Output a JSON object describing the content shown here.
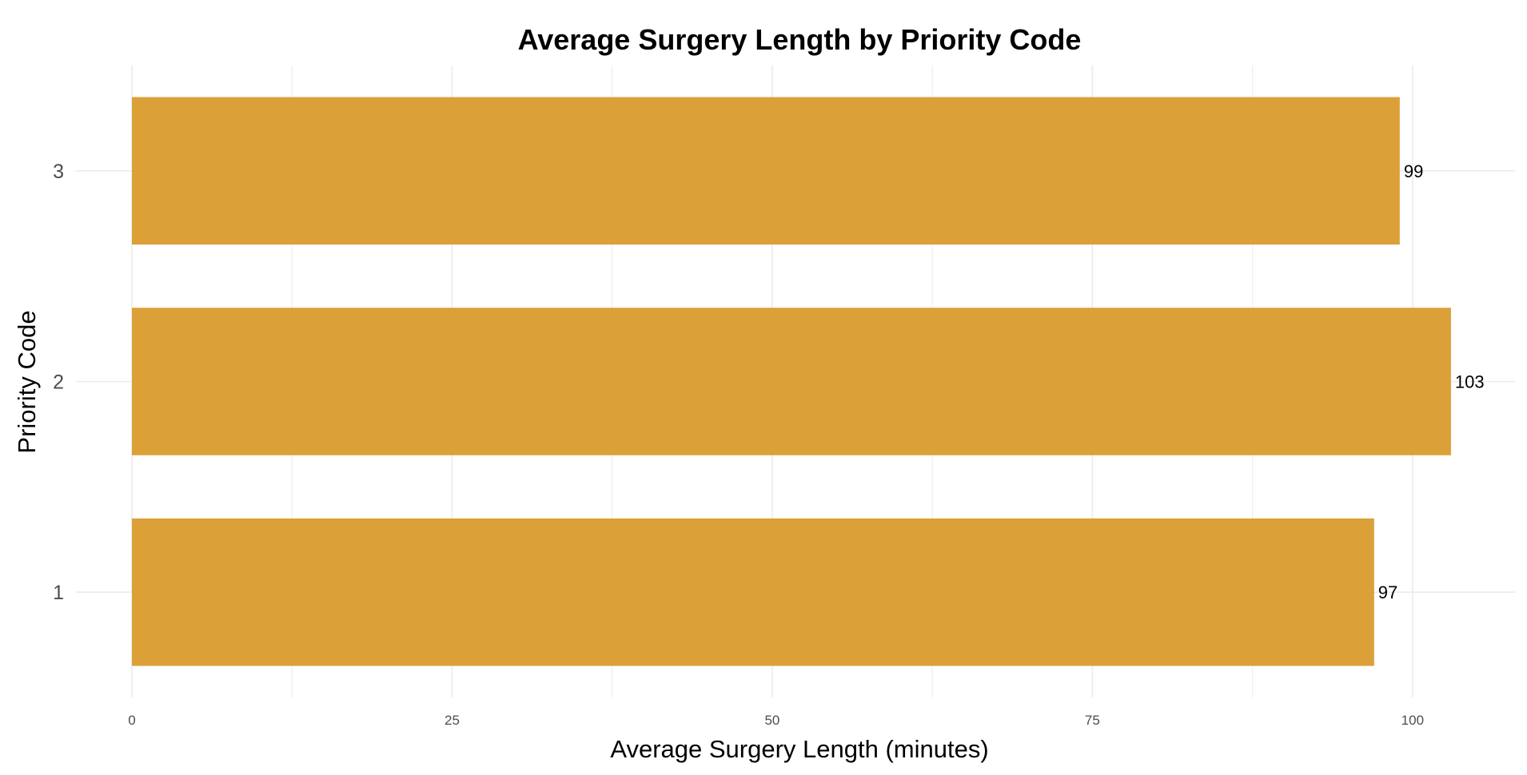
{
  "chart_data": {
    "type": "bar",
    "orientation": "horizontal",
    "title": "Average Surgery Length by Priority Code",
    "xlabel": "Average Surgery Length (minutes)",
    "ylabel": "Priority Code",
    "categories": [
      "1",
      "2",
      "3"
    ],
    "values": [
      97,
      103,
      99
    ],
    "data_labels": [
      "97",
      "103",
      "99"
    ],
    "x_ticks": [
      0,
      25,
      50,
      75,
      100
    ],
    "x_tick_labels": [
      "0",
      "25",
      "50",
      "75",
      "100"
    ],
    "xlim": [
      0,
      108
    ],
    "grid": true,
    "legend": "none",
    "bar_color": "#DBA037",
    "grid_color": "#EBEBEB"
  }
}
